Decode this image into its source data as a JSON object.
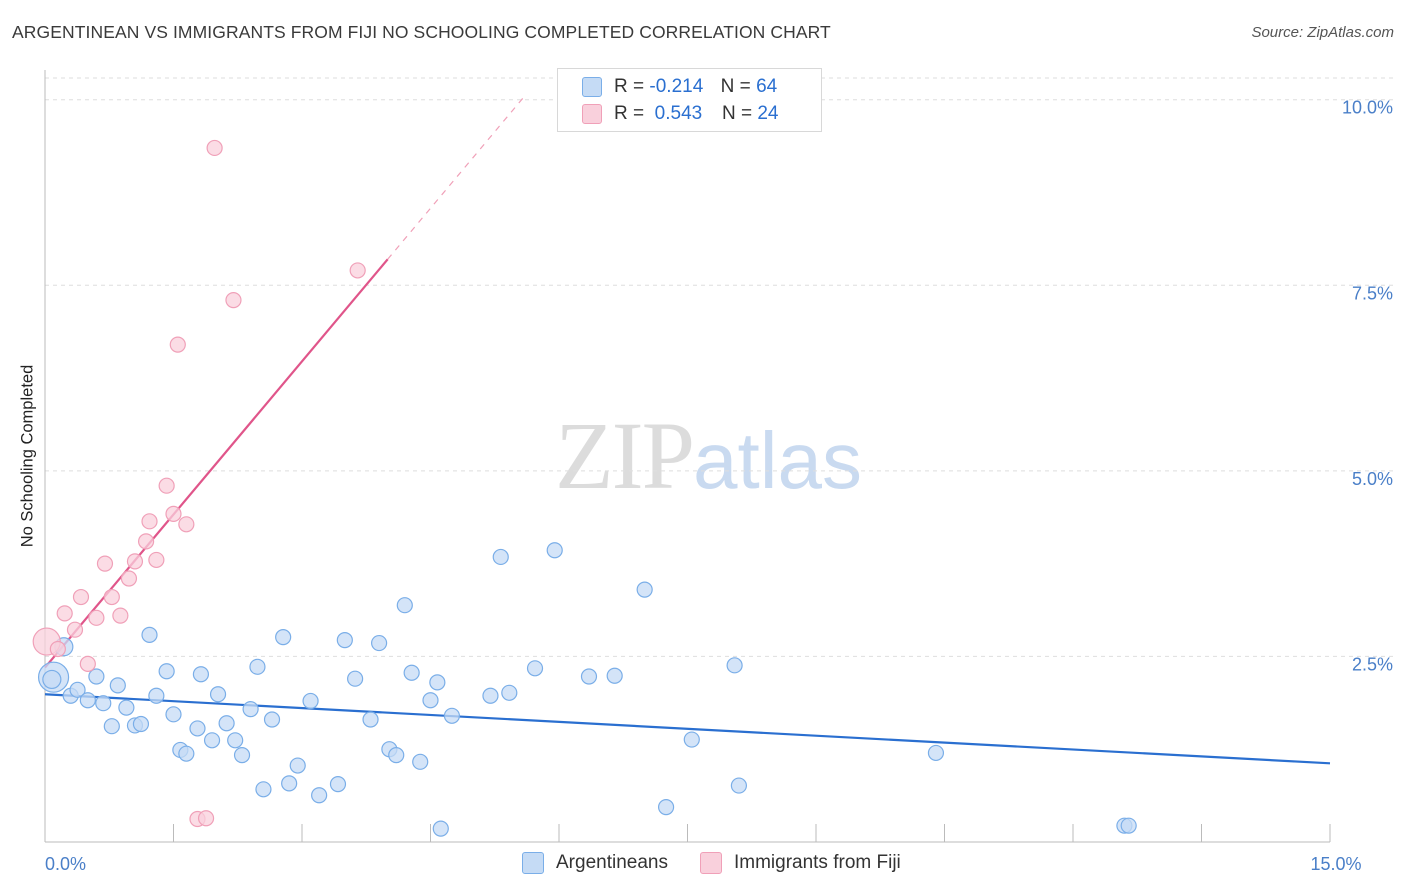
{
  "title": "ARGENTINEAN VS IMMIGRANTS FROM FIJI NO SCHOOLING COMPLETED CORRELATION CHART",
  "source": "Source: ZipAtlas.com",
  "watermark": {
    "zip": "ZIP",
    "atlas": "atlas"
  },
  "legend_stats": [
    {
      "r_label": "R =",
      "r_value": "-0.214",
      "n_label": "N =",
      "n_value": "64"
    },
    {
      "r_label": "R =",
      "r_value": "0.543",
      "n_label": "N =",
      "n_value": "24"
    }
  ],
  "chart_data": {
    "type": "scatter",
    "title": "ARGENTINEAN VS IMMIGRANTS FROM FIJI NO SCHOOLING COMPLETED CORRELATION CHART",
    "xlabel": "",
    "ylabel": "No Schooling Completed",
    "xlim": [
      0,
      15
    ],
    "ylim": [
      0,
      10.4
    ],
    "x_tick_labels": [
      {
        "value": 0,
        "label": "0.0%"
      },
      {
        "value": 15,
        "label": "15.0%"
      }
    ],
    "y_tick_labels": [
      {
        "value": 2.5,
        "label": "2.5%"
      },
      {
        "value": 5.0,
        "label": "5.0%"
      },
      {
        "value": 7.5,
        "label": "7.5%"
      },
      {
        "value": 10.0,
        "label": "10.0%"
      }
    ],
    "grid": true,
    "legend_position": "bottom",
    "series": [
      {
        "name": "Argentineans",
        "color": "#7aaee8",
        "fill": "#c5dbf5",
        "trend": {
          "x": [
            0,
            15
          ],
          "y": [
            1.99,
            1.06
          ],
          "color": "#2a6fd0"
        },
        "points": [
          [
            0.1,
            2.22
          ],
          [
            0.22,
            2.63
          ],
          [
            0.3,
            1.97
          ],
          [
            0.38,
            2.05
          ],
          [
            0.5,
            1.91
          ],
          [
            0.6,
            2.23
          ],
          [
            0.68,
            1.87
          ],
          [
            0.85,
            2.11
          ],
          [
            0.78,
            1.56
          ],
          [
            0.95,
            1.81
          ],
          [
            1.05,
            1.57
          ],
          [
            1.12,
            1.59
          ],
          [
            1.22,
            2.79
          ],
          [
            1.3,
            1.97
          ],
          [
            1.42,
            2.3
          ],
          [
            1.5,
            1.72
          ],
          [
            1.58,
            1.24
          ],
          [
            1.65,
            1.19
          ],
          [
            1.78,
            1.53
          ],
          [
            1.82,
            2.26
          ],
          [
            1.95,
            1.37
          ],
          [
            2.02,
            1.99
          ],
          [
            2.12,
            1.6
          ],
          [
            2.22,
            1.37
          ],
          [
            2.3,
            1.17
          ],
          [
            2.4,
            1.79
          ],
          [
            2.48,
            2.36
          ],
          [
            2.55,
            0.71
          ],
          [
            2.65,
            1.65
          ],
          [
            2.78,
            2.76
          ],
          [
            2.85,
            0.79
          ],
          [
            2.95,
            1.03
          ],
          [
            3.1,
            1.9
          ],
          [
            3.2,
            0.63
          ],
          [
            3.42,
            0.78
          ],
          [
            3.5,
            2.72
          ],
          [
            3.62,
            2.2
          ],
          [
            3.8,
            1.65
          ],
          [
            3.9,
            2.68
          ],
          [
            4.02,
            1.25
          ],
          [
            4.1,
            1.17
          ],
          [
            4.2,
            3.19
          ],
          [
            4.28,
            2.28
          ],
          [
            4.38,
            1.08
          ],
          [
            4.5,
            1.91
          ],
          [
            4.58,
            2.15
          ],
          [
            4.75,
            1.7
          ],
          [
            4.62,
            0.18
          ],
          [
            5.2,
            1.97
          ],
          [
            5.32,
            3.84
          ],
          [
            5.42,
            2.01
          ],
          [
            5.72,
            2.34
          ],
          [
            5.95,
            3.93
          ],
          [
            6.35,
            2.23
          ],
          [
            6.65,
            2.24
          ],
          [
            7.0,
            3.4
          ],
          [
            7.25,
            0.47
          ],
          [
            7.55,
            1.38
          ],
          [
            8.05,
            2.38
          ],
          [
            8.1,
            0.76
          ],
          [
            10.4,
            1.2
          ],
          [
            12.6,
            0.22
          ],
          [
            12.65,
            0.22
          ],
          [
            0.08,
            2.19
          ]
        ],
        "point_sizes": [
          20,
          12,
          10,
          10,
          10,
          10,
          10,
          10,
          10,
          10,
          10,
          10,
          10,
          10,
          10,
          10,
          10,
          10,
          10,
          10,
          10,
          10,
          10,
          10,
          10,
          10,
          10,
          10,
          10,
          10,
          10,
          10,
          10,
          10,
          10,
          10,
          10,
          10,
          10,
          10,
          10,
          10,
          10,
          10,
          10,
          10,
          10,
          10,
          10,
          10,
          10,
          10,
          10,
          10,
          10,
          10,
          10,
          10,
          10,
          10,
          10,
          10,
          10,
          12
        ]
      },
      {
        "name": "Immigrants from Fiji",
        "color": "#f0a0b8",
        "fill": "#f9d0dc",
        "trend": {
          "x": [
            0,
            4.0
          ],
          "y": [
            2.35,
            7.85
          ],
          "color": "#e0558a",
          "dashed_to": [
            5.6,
            10.05
          ]
        },
        "points": [
          [
            0.02,
            2.7
          ],
          [
            0.15,
            2.6
          ],
          [
            0.23,
            3.08
          ],
          [
            0.35,
            2.86
          ],
          [
            0.42,
            3.3
          ],
          [
            0.5,
            2.4
          ],
          [
            0.6,
            3.02
          ],
          [
            0.7,
            3.75
          ],
          [
            0.78,
            3.3
          ],
          [
            0.88,
            3.05
          ],
          [
            0.98,
            3.55
          ],
          [
            1.05,
            3.78
          ],
          [
            1.18,
            4.05
          ],
          [
            1.22,
            4.32
          ],
          [
            1.3,
            3.8
          ],
          [
            1.42,
            4.8
          ],
          [
            1.5,
            4.42
          ],
          [
            1.55,
            6.7
          ],
          [
            1.65,
            4.28
          ],
          [
            1.78,
            0.31
          ],
          [
            1.88,
            0.32
          ],
          [
            1.98,
            9.35
          ],
          [
            2.2,
            7.3
          ],
          [
            3.65,
            7.7
          ]
        ],
        "point_sizes": [
          18,
          10,
          10,
          10,
          10,
          10,
          10,
          10,
          10,
          10,
          10,
          10,
          10,
          10,
          10,
          10,
          10,
          10,
          10,
          10,
          10,
          10,
          10,
          10
        ]
      }
    ]
  }
}
